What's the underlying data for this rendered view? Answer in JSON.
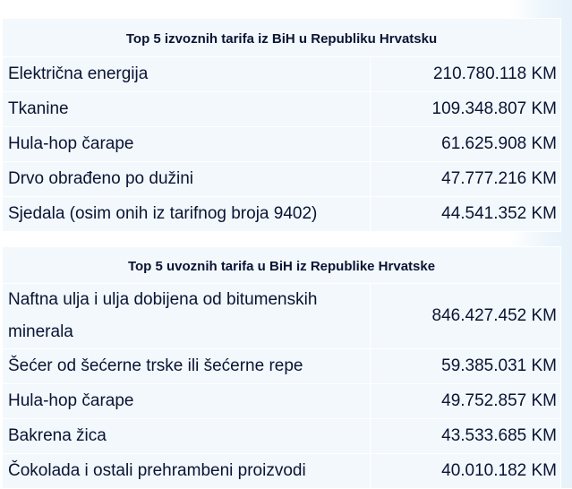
{
  "export": {
    "title": "Top 5 izvoznih tarifa iz BiH u Republiku Hrvatsku",
    "rows": [
      {
        "name": "Električna energija",
        "value": "210.780.118 KM"
      },
      {
        "name": "Tkanine",
        "value": "109.348.807 KM"
      },
      {
        "name": "Hula-hop čarape",
        "value": "61.625.908 KM"
      },
      {
        "name": "Drvo obrađeno po dužini",
        "value": "47.777.216 KM"
      },
      {
        "name": "Sjedala (osim onih iz tarifnog broja 9402)",
        "value": "44.541.352 KM"
      }
    ]
  },
  "import": {
    "title": "Top 5 uvoznih tarifa u BiH iz Republike Hrvatske",
    "rows": [
      {
        "name": "Naftna ulja i ulja dobijena od bitumenskih minerala",
        "value": "846.427.452 KM"
      },
      {
        "name": "Šećer od šećerne trske ili šećerne repe",
        "value": "59.385.031 KM"
      },
      {
        "name": "Hula-hop čarape",
        "value": "49.752.857 KM"
      },
      {
        "name": "Bakrena žica",
        "value": "43.533.685 KM"
      },
      {
        "name": "Čokolada i ostali prehrambeni proizvodi",
        "value": "40.010.182 KM"
      }
    ]
  }
}
